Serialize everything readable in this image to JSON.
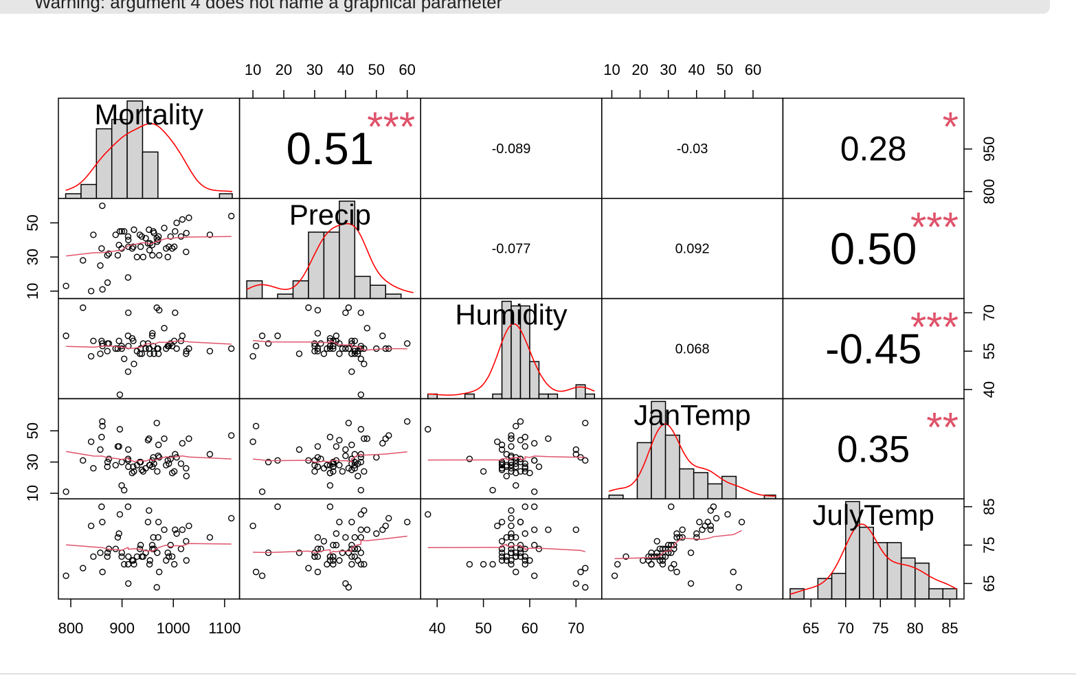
{
  "console": {
    "warning_text": "Warning: argument 4 does not name a graphical parameter"
  },
  "chart_data": {
    "type": "scatterplot-matrix",
    "variables": [
      "Mortality",
      "Precip",
      "Humidity",
      "JanTemp",
      "JulyTemp"
    ],
    "ranges": {
      "Mortality": [
        790,
        1115
      ],
      "Precip": [
        8,
        62
      ],
      "Humidity": [
        38,
        74
      ],
      "JanTemp": [
        9,
        68
      ],
      "JulyTemp": [
        62,
        86
      ]
    },
    "ticks": {
      "Mortality": [
        "800",
        "900",
        "1000",
        "1100"
      ],
      "Precip": [
        "10",
        "20",
        "30",
        "40",
        "50",
        "60"
      ],
      "Humidity": [
        "40",
        "55",
        "70"
      ],
      "Humidity_bottom": [
        "40",
        "50",
        "60",
        "70"
      ],
      "JanTemp": [
        "10",
        "20",
        "30",
        "40",
        "50",
        "60"
      ],
      "JanTemp_left": [
        "10",
        "30",
        "50"
      ],
      "JulyTemp": [
        "65",
        "70",
        "75",
        "80",
        "85"
      ],
      "JulyTemp_right": [
        "65",
        "75",
        "85"
      ],
      "Mortality_right": [
        "800",
        "950"
      ],
      "Precip_left": [
        "10",
        "30",
        "50"
      ]
    },
    "correlations": [
      {
        "row": 0,
        "col": 1,
        "value": "0.51",
        "stars": "***"
      },
      {
        "row": 0,
        "col": 2,
        "value": "-0.089",
        "stars": ""
      },
      {
        "row": 0,
        "col": 3,
        "value": "-0.03",
        "stars": ""
      },
      {
        "row": 0,
        "col": 4,
        "value": "0.28",
        "stars": "*"
      },
      {
        "row": 1,
        "col": 2,
        "value": "-0.077",
        "stars": ""
      },
      {
        "row": 1,
        "col": 3,
        "value": "0.092",
        "stars": ""
      },
      {
        "row": 1,
        "col": 4,
        "value": "0.50",
        "stars": "***"
      },
      {
        "row": 2,
        "col": 3,
        "value": "0.068",
        "stars": ""
      },
      {
        "row": 2,
        "col": 4,
        "value": "-0.45",
        "stars": "***"
      },
      {
        "row": 3,
        "col": 4,
        "value": "0.35",
        "stars": "**"
      }
    ],
    "histograms": {
      "Mortality": {
        "breaks": [
          790,
          820,
          850,
          880,
          910,
          940,
          970,
          1000,
          1030,
          1060,
          1090,
          1115
        ],
        "counts": [
          1,
          3,
          15,
          17,
          21,
          10,
          0,
          0,
          0,
          0,
          1
        ]
      },
      "Precip": {
        "breaks": [
          8,
          13,
          18,
          23,
          28,
          33,
          38,
          43,
          48,
          53,
          58,
          62
        ],
        "counts": [
          4,
          0,
          1,
          4,
          15,
          15,
          22,
          5,
          3,
          1,
          0
        ]
      },
      "Humidity": {
        "breaks": [
          38,
          40,
          42,
          44,
          46,
          48,
          50,
          52,
          54,
          56,
          58,
          60,
          62,
          64,
          66,
          68,
          70,
          72,
          74
        ],
        "counts": [
          1,
          0,
          0,
          0,
          1,
          0,
          0,
          1,
          21,
          20,
          20,
          8,
          1,
          1,
          0,
          0,
          3,
          1
        ]
      },
      "JanTemp": {
        "breaks": [
          9,
          14,
          19,
          24,
          29,
          34,
          39,
          44,
          49,
          54,
          59,
          64,
          68
        ],
        "counts": [
          1,
          0,
          15,
          26,
          17,
          8,
          7,
          4,
          6,
          0,
          0,
          1
        ]
      },
      "JulyTemp": {
        "breaks": [
          62,
          64,
          66,
          68,
          70,
          72,
          74,
          76,
          78,
          80,
          82,
          84,
          86
        ],
        "counts": [
          2,
          0,
          4,
          5,
          19,
          14,
          11,
          11,
          8,
          7,
          2,
          2
        ]
      }
    },
    "observations": {
      "Mortality": [
        921.87,
        997.87,
        962.35,
        982.29,
        1071.29,
        1030.38,
        934.7,
        899.53,
        1001.9,
        912.35,
        1017.61,
        1024.89,
        970.47,
        985.95,
        958.84,
        860.1,
        936.23,
        871.77,
        959.22,
        941.18,
        891.71,
        871.34,
        971.12,
        887.47,
        952.53,
        968.67,
        919.73,
        844.05,
        861.83,
        989.27,
        1006.49,
        861.44,
        929.15,
        857.62,
        961.01,
        923.23,
        1113.16,
        994.65,
        1015.02,
        991.29,
        893.99,
        938.5,
        946.19,
        1025.5,
        874.28,
        953.56,
        839.71,
        911.7,
        790.73,
        899.26,
        904.16,
        950.67,
        972.46,
        912.2,
        967.8,
        823.76,
        1003.5,
        895.7,
        911.82,
        954.44
      ],
      "Precip": [
        36,
        35,
        44,
        47,
        43,
        53,
        43,
        45,
        36,
        36,
        52,
        33,
        40,
        35,
        37,
        35,
        36,
        15,
        31,
        30,
        31,
        31,
        42,
        43,
        46,
        39,
        35,
        43,
        11,
        30,
        50,
        60,
        30,
        25,
        45,
        46,
        54,
        42,
        42,
        36,
        37,
        42,
        41,
        44,
        32,
        34,
        10,
        18,
        13,
        35,
        45,
        38,
        31,
        40,
        41,
        28,
        45,
        45,
        42,
        38
      ],
      "Humidity": [
        59,
        57,
        54,
        64,
        55,
        56,
        54,
        56,
        59,
        57,
        61,
        54,
        56,
        56,
        61,
        59,
        56,
        58,
        62,
        58,
        56,
        55,
        54,
        56,
        56,
        56,
        60,
        59,
        57,
        57,
        56,
        58,
        55,
        54,
        57,
        50,
        56,
        58,
        59,
        57,
        59,
        54,
        56,
        55,
        58,
        56,
        53,
        61,
        61,
        57,
        52,
        58,
        71,
        70,
        72,
        72,
        70,
        38,
        47,
        54
      ],
      "JanTemp": [
        27,
        23,
        29,
        45,
        35,
        45,
        30,
        30,
        24,
        27,
        42,
        26,
        34,
        28,
        31,
        46,
        30,
        30,
        27,
        24,
        40,
        27,
        41,
        28,
        45,
        24,
        23,
        26,
        53,
        31,
        33,
        56,
        28,
        38,
        33,
        24,
        47,
        32,
        29,
        29,
        40,
        25,
        26,
        21,
        32,
        28,
        43,
        31,
        11,
        15,
        12,
        44,
        33,
        38,
        55,
        31,
        35,
        51,
        32,
        28
      ],
      "JulyTemp": [
        71,
        72,
        74,
        79,
        77,
        80,
        74,
        73,
        70,
        72,
        79,
        76,
        77,
        71,
        75,
        85,
        75,
        73,
        74,
        72,
        77,
        72,
        81,
        74,
        84,
        73,
        71,
        72,
        68,
        73,
        78,
        81,
        72,
        73,
        77,
        70,
        82,
        75,
        74,
        72,
        78,
        72,
        73,
        71,
        74,
        70,
        80,
        85,
        67,
        72,
        70,
        81,
        68,
        65,
        64,
        69,
        79,
        83,
        70,
        71
      ]
    }
  }
}
